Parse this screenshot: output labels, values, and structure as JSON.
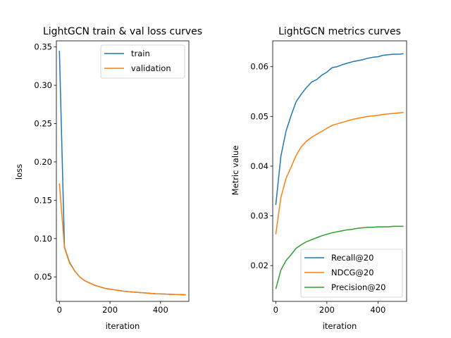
{
  "chart_data": [
    {
      "type": "line",
      "title": "LightGCN train & val loss curves",
      "xlabel": "iteration",
      "ylabel": "loss",
      "xlim": [
        -12,
        512
      ],
      "ylim": [
        0.018,
        0.358
      ],
      "xticks": [
        0,
        200,
        400
      ],
      "yticks": [
        0.05,
        0.1,
        0.15,
        0.2,
        0.25,
        0.3,
        0.35
      ],
      "xtick_labels": [
        "0",
        "200",
        "400"
      ],
      "ytick_labels": [
        "0.05",
        "0.10",
        "0.15",
        "0.20",
        "0.25",
        "0.30",
        "0.35"
      ],
      "legend": "top-right",
      "grid": false,
      "x": [
        0,
        20,
        40,
        60,
        80,
        100,
        120,
        140,
        160,
        180,
        200,
        220,
        240,
        260,
        280,
        300,
        320,
        340,
        360,
        380,
        400,
        420,
        440,
        460,
        480,
        500
      ],
      "series": [
        {
          "name": "train",
          "color": "#1f77b4",
          "values": [
            0.345,
            0.089,
            0.069,
            0.058,
            0.05,
            0.045,
            0.042,
            0.039,
            0.037,
            0.035,
            0.034,
            0.033,
            0.032,
            0.031,
            0.0305,
            0.03,
            0.0295,
            0.029,
            0.0285,
            0.028,
            0.0278,
            0.0275,
            0.0272,
            0.027,
            0.0268,
            0.0266
          ]
        },
        {
          "name": "validation",
          "color": "#ff7f0e",
          "values": [
            0.172,
            0.088,
            0.068,
            0.058,
            0.05,
            0.045,
            0.042,
            0.039,
            0.037,
            0.035,
            0.034,
            0.033,
            0.032,
            0.031,
            0.0305,
            0.03,
            0.0295,
            0.029,
            0.0285,
            0.028,
            0.0278,
            0.0275,
            0.0272,
            0.027,
            0.0268,
            0.0266
          ]
        }
      ]
    },
    {
      "type": "line",
      "title": "LightGCN metrics curves",
      "xlabel": "iteration",
      "ylabel": "Metric value",
      "xlim": [
        -12,
        512
      ],
      "ylim": [
        0.0128,
        0.0652
      ],
      "xticks": [
        0,
        200,
        400
      ],
      "yticks": [
        0.02,
        0.03,
        0.04,
        0.05,
        0.06
      ],
      "xtick_labels": [
        "0",
        "200",
        "400"
      ],
      "ytick_labels": [
        "0.02",
        "0.03",
        "0.04",
        "0.05",
        "0.06"
      ],
      "legend": "bottom-right",
      "grid": false,
      "x": [
        0,
        20,
        40,
        60,
        80,
        100,
        120,
        140,
        160,
        180,
        200,
        220,
        240,
        260,
        280,
        300,
        320,
        340,
        360,
        380,
        400,
        420,
        440,
        460,
        480,
        500
      ],
      "series": [
        {
          "name": "Recall@20",
          "color": "#1f77b4",
          "values": [
            0.0322,
            0.042,
            0.047,
            0.0502,
            0.053,
            0.0545,
            0.0558,
            0.0569,
            0.0574,
            0.0583,
            0.0589,
            0.0598,
            0.06,
            0.0604,
            0.0607,
            0.061,
            0.0612,
            0.0614,
            0.0617,
            0.0619,
            0.062,
            0.0623,
            0.0624,
            0.0625,
            0.0625,
            0.0626
          ]
        },
        {
          "name": "NDCG@20",
          "color": "#ff7f0e",
          "values": [
            0.0263,
            0.0337,
            0.0375,
            0.0398,
            0.0422,
            0.0439,
            0.045,
            0.0458,
            0.0464,
            0.047,
            0.0476,
            0.0482,
            0.0485,
            0.0488,
            0.0491,
            0.0494,
            0.0496,
            0.0498,
            0.05,
            0.0501,
            0.0502,
            0.0504,
            0.0505,
            0.0506,
            0.0507,
            0.0508
          ]
        },
        {
          "name": "Precision@20",
          "color": "#2ca02c",
          "values": [
            0.0153,
            0.0191,
            0.021,
            0.0222,
            0.0235,
            0.0242,
            0.0248,
            0.0252,
            0.0256,
            0.026,
            0.0263,
            0.0266,
            0.0268,
            0.027,
            0.0272,
            0.0273,
            0.0275,
            0.0276,
            0.0277,
            0.0277,
            0.0278,
            0.0278,
            0.0278,
            0.0279,
            0.0279,
            0.0279
          ]
        }
      ]
    }
  ]
}
